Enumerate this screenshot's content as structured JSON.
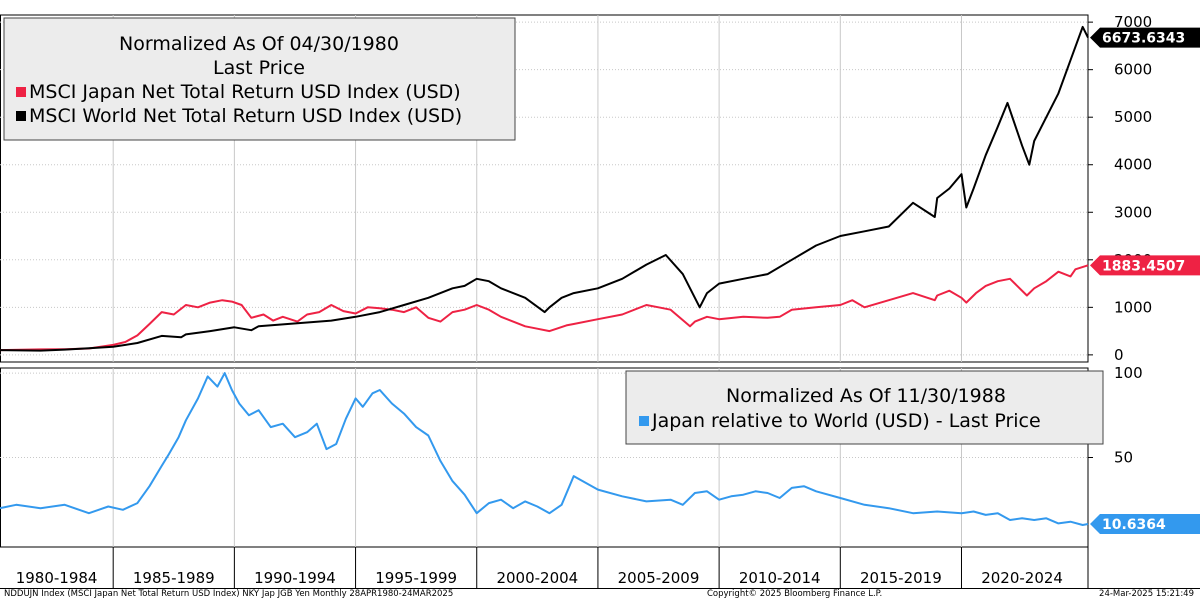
{
  "chart_data": [
    {
      "type": "line",
      "title": "Normalized As Of 04/30/1980",
      "subtitle": "Last Price",
      "ylim": [
        -150,
        7150
      ],
      "yticks": [
        0,
        1000,
        2000,
        3000,
        4000,
        5000,
        6000,
        7000
      ],
      "x_range": [
        1980.33,
        2025.22
      ],
      "series": [
        {
          "name": "MSCI Japan Net Total Return USD Index (USD)",
          "color": "#ee2244",
          "last_label": "1883.4507",
          "x": [
            1980.33,
            1982,
            1983,
            1984,
            1985,
            1985.5,
            1986,
            1986.5,
            1987,
            1987.5,
            1988,
            1988.5,
            1989,
            1989.5,
            1989.9,
            1990.3,
            1990.7,
            1991.2,
            1991.6,
            1992,
            1992.6,
            1993,
            1993.5,
            1994,
            1994.5,
            1995,
            1995.5,
            1996,
            1996.5,
            1997,
            1997.5,
            1998,
            1998.5,
            1999,
            1999.5,
            2000,
            2000.5,
            2001,
            2001.5,
            2002,
            2002.5,
            2003,
            2003.3,
            2003.7,
            2004,
            2005,
            2006,
            2007,
            2007.5,
            2008,
            2008.8,
            2009,
            2009.5,
            2010,
            2011,
            2012,
            2012.5,
            2013,
            2014,
            2015,
            2015.5,
            2016,
            2017,
            2018,
            2018.9,
            2019,
            2019.5,
            2020,
            2020.2,
            2020.6,
            2021,
            2021.5,
            2022,
            2022.7,
            2023,
            2023.5,
            2024,
            2024.5,
            2024.7,
            2025.22
          ],
          "values": [
            100,
            115,
            120,
            135,
            210,
            270,
            410,
            650,
            900,
            850,
            1050,
            1000,
            1100,
            1150,
            1120,
            1050,
            780,
            850,
            720,
            800,
            700,
            850,
            900,
            1050,
            920,
            870,
            1000,
            980,
            950,
            900,
            1000,
            780,
            700,
            900,
            950,
            1050,
            950,
            800,
            700,
            600,
            550,
            500,
            550,
            620,
            650,
            750,
            850,
            1050,
            1000,
            950,
            600,
            700,
            800,
            750,
            800,
            780,
            800,
            950,
            1000,
            1050,
            1150,
            1000,
            1150,
            1300,
            1150,
            1250,
            1350,
            1200,
            1100,
            1300,
            1450,
            1550,
            1600,
            1250,
            1400,
            1550,
            1750,
            1650,
            1800,
            1883.45
          ]
        },
        {
          "name": "MSCI World Net Total Return USD Index (USD)",
          "color": "#000000",
          "last_label": "6673.6343",
          "x": [
            1980.33,
            1982,
            1983,
            1984,
            1985,
            1986,
            1987,
            1987.8,
            1988,
            1989,
            1990,
            1990.7,
            1991,
            1992,
            1993,
            1994,
            1995,
            1996,
            1997,
            1998,
            1999,
            1999.5,
            2000,
            2000.5,
            2001,
            2002,
            2002.8,
            2003,
            2003.5,
            2004,
            2005,
            2006,
            2007,
            2007.8,
            2008.5,
            2009.2,
            2009.5,
            2010,
            2011,
            2012,
            2013,
            2014,
            2015,
            2016,
            2017,
            2018,
            2018.9,
            2019,
            2019.5,
            2020,
            2020.2,
            2020.5,
            2021,
            2021.5,
            2021.9,
            2022.5,
            2022.8,
            2023,
            2023.5,
            2024,
            2024.5,
            2025,
            2025.22
          ],
          "values": [
            100,
            90,
            110,
            140,
            170,
            250,
            400,
            370,
            430,
            500,
            580,
            520,
            600,
            640,
            680,
            720,
            800,
            900,
            1050,
            1200,
            1400,
            1450,
            1600,
            1550,
            1400,
            1200,
            900,
            1000,
            1200,
            1300,
            1400,
            1600,
            1900,
            2100,
            1700,
            1000,
            1300,
            1500,
            1600,
            1700,
            2000,
            2300,
            2500,
            2600,
            2700,
            3200,
            2900,
            3300,
            3500,
            3800,
            3100,
            3500,
            4200,
            4800,
            5300,
            4400,
            4000,
            4500,
            5000,
            5500,
            6200,
            6900,
            6673.63
          ]
        }
      ]
    },
    {
      "type": "line",
      "title": "Normalized As Of 11/30/1988",
      "ylim": [
        -3,
        103
      ],
      "yticks": [
        50,
        100
      ],
      "x_range": [
        1980.33,
        2025.22
      ],
      "series": [
        {
          "name": "Japan relative to World (USD) - Last Price",
          "color": "#3399ee",
          "last_label": "10.6364",
          "x": [
            1980.33,
            1981,
            1982,
            1983,
            1984,
            1984.8,
            1985.4,
            1986,
            1986.5,
            1987,
            1987.3,
            1987.7,
            1988,
            1988.5,
            1988.9,
            1989.3,
            1989.6,
            1989.9,
            1990.2,
            1990.6,
            1991,
            1991.5,
            1992,
            1992.5,
            1993,
            1993.4,
            1993.8,
            1994.2,
            1994.6,
            1995,
            1995.3,
            1995.7,
            1996,
            1996.5,
            1997,
            1997.5,
            1998,
            1998.5,
            1999,
            1999.5,
            2000,
            2000.5,
            2001,
            2001.5,
            2002,
            2002.5,
            2003,
            2003.5,
            2004,
            2005,
            2006,
            2007,
            2008,
            2008.5,
            2009,
            2009.5,
            2010,
            2010.5,
            2011,
            2011.5,
            2012,
            2012.5,
            2013,
            2013.5,
            2014,
            2015,
            2016,
            2017,
            2018,
            2019,
            2020,
            2020.5,
            2021,
            2021.5,
            2022,
            2022.5,
            2023,
            2023.5,
            2024,
            2024.5,
            2025,
            2025.22
          ],
          "values": [
            20,
            22,
            20,
            22,
            17,
            21,
            19,
            23,
            33,
            45,
            52,
            62,
            72,
            85,
            98,
            92,
            100,
            90,
            82,
            75,
            78,
            68,
            70,
            62,
            65,
            70,
            55,
            58,
            73,
            85,
            80,
            88,
            90,
            82,
            76,
            68,
            63,
            48,
            36,
            28,
            17,
            23,
            25,
            20,
            24,
            21,
            17,
            22,
            39,
            31,
            27,
            24,
            25,
            22,
            29,
            30,
            25,
            27,
            28,
            30,
            29,
            26,
            32,
            33,
            30,
            26,
            22,
            20,
            17,
            18,
            17,
            18,
            16,
            17,
            13,
            14,
            13,
            14,
            11,
            12,
            10,
            10.64
          ]
        }
      ]
    }
  ],
  "legend_top": {
    "title": "Normalized As Of 04/30/1980",
    "subtitle": "Last Price",
    "entries": [
      {
        "label": "MSCI Japan Net Total Return USD Index (USD)",
        "color": "#ee2244"
      },
      {
        "label": "MSCI World Net Total Return USD Index (USD)",
        "color": "#000000"
      }
    ]
  },
  "legend_bottom": {
    "title": "Normalized As Of 11/30/1988",
    "entries": [
      {
        "label": "Japan relative to World (USD) - Last Price",
        "color": "#3399ee"
      }
    ]
  },
  "x_axis": {
    "categories": [
      "1980-1984",
      "1985-1989",
      "1990-1994",
      "1995-1999",
      "2000-2004",
      "2005-2009",
      "2010-2014",
      "2015-2019",
      "2020-2024"
    ],
    "boundaries": [
      1980.33,
      1985,
      1990,
      1995,
      2000,
      2005,
      2010,
      2015,
      2020,
      2025,
      2025.22
    ]
  },
  "footer": {
    "left": "NDDUJN Index (MSCI Japan Net Total Return USD Index) NKY Jap JGB Yen  Monthly 28APR1980-24MAR2025",
    "center": "Copyright© 2025 Bloomberg Finance L.P.",
    "right": "24-Mar-2025 15:21:49"
  }
}
